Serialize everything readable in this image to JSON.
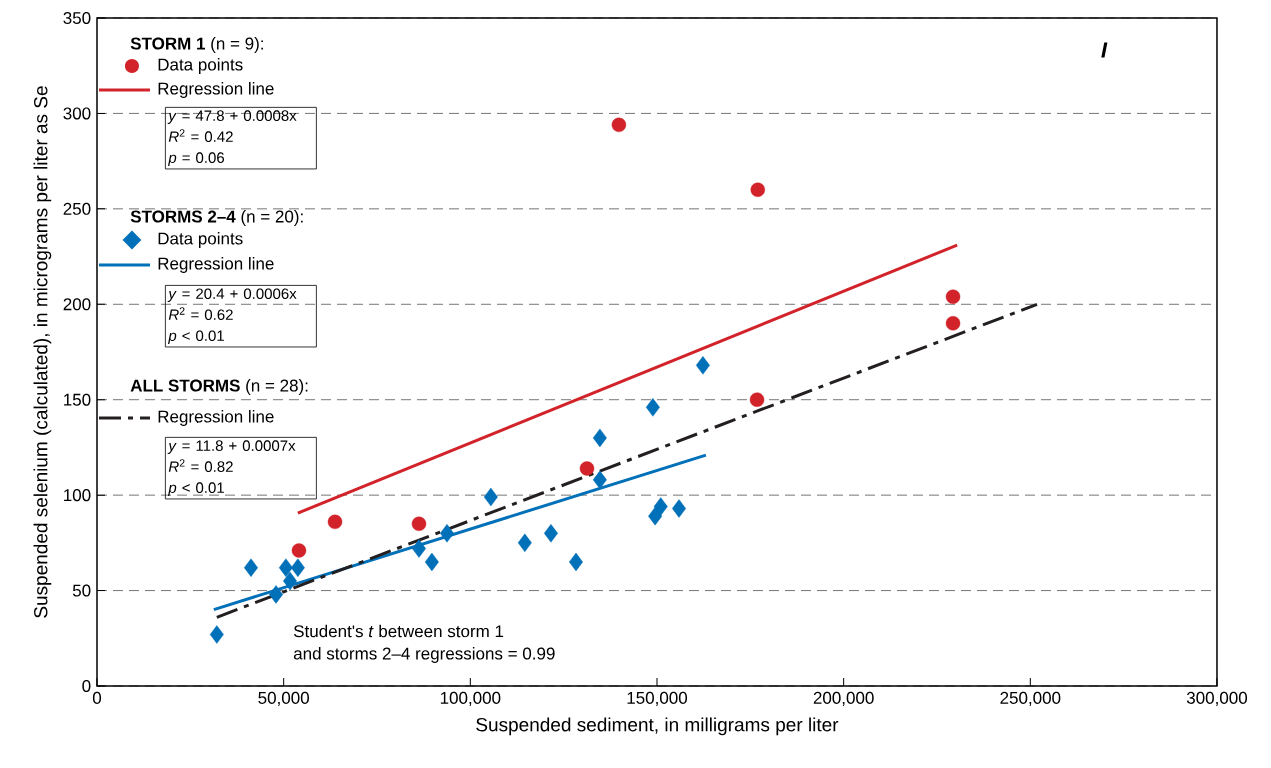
{
  "chart_data": {
    "type": "scatter",
    "xlabel": "Suspended sediment, in milligrams per liter",
    "ylabel": "Suspended selenium (calculated), in micrograms per liter as Se",
    "xlim": [
      0,
      300000
    ],
    "ylim": [
      0,
      350
    ],
    "xticks": [
      0,
      {
        "value": 50000,
        "label": "50,000"
      },
      {
        "value": 100000,
        "label": "100,000"
      },
      {
        "value": 150000,
        "label": "150,000"
      },
      {
        "value": 200000,
        "label": "200,000"
      },
      {
        "value": 250000,
        "label": "250,000"
      },
      {
        "value": 300000,
        "label": "300,000"
      }
    ],
    "yticks": [
      0,
      50,
      100,
      150,
      200,
      250,
      300,
      350
    ],
    "grid": "y",
    "legend": "top left",
    "series": [
      {
        "name": "Data points",
        "marker": "circle",
        "color": "#d2232a",
        "x": [
          54100,
          63750,
          86250,
          131250,
          139800,
          177000,
          176800,
          229300,
          229300
        ],
        "values": [
          71,
          86,
          85,
          114,
          294,
          260,
          150,
          204,
          190
        ]
      },
      {
        "name": "Regression line",
        "type": "line",
        "line_style": "solid",
        "color": "#d2232a",
        "x": [
          53800,
          230400
        ],
        "values": [
          90.6,
          231
        ]
      },
      {
        "name": "Data points",
        "marker": "diamond",
        "color": "#0070b8",
        "x": [
          32100,
          41250,
          47950,
          50600,
          51700,
          53800,
          86250,
          89700,
          93750,
          105500,
          114600,
          121600,
          128300,
          134700,
          134700,
          148900,
          149500,
          151000,
          155900,
          162300
        ],
        "values": [
          27,
          62,
          48,
          62,
          55,
          62,
          72,
          65,
          80,
          99,
          75,
          80,
          65,
          130,
          108,
          146,
          89,
          94,
          93,
          168
        ]
      },
      {
        "name": "Regression line",
        "type": "line",
        "line_style": "solid",
        "color": "#0070b8",
        "x": [
          31300,
          163100
        ],
        "values": [
          40,
          121
        ]
      },
      {
        "name": "Regression line",
        "type": "line",
        "line_style": "dashdot",
        "color": "#231f20",
        "x": [
          32100,
          251800
        ],
        "values": [
          36,
          200
        ]
      }
    ],
    "annotations": [
      "**STORM 1** (n = 9):",
      "*y* = 47.8 + 0.0008x",
      "*R*$^{2}$ = 0.42",
      "*p* = 0.06",
      "**STORMS 2–4** (n = 20):",
      "*y* = 20.4 + 0.0006x",
      "*R*$^{2}$ = 0.62",
      "*p* < 0.01",
      "**ALL STORMS** (n = 28):",
      "*y* = 11.8 + 0.0007x",
      "*R*$^{2}$ = 0.82",
      "*p* < 0.01",
      "Student's *t* between storm 1",
      "and storms 2–4 regressions = 0.99",
      "I"
    ]
  }
}
